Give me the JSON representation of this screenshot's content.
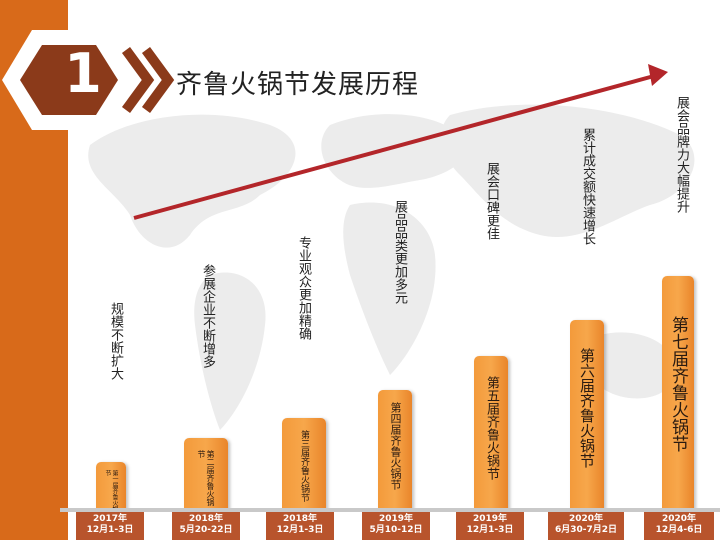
{
  "badge": {
    "number": "1"
  },
  "title": "齐鲁火锅节发展历程",
  "milestones": [
    {
      "text": "规模不断扩大",
      "bar_label": "第一届齐鲁火锅节",
      "date_line1": "2017年",
      "date_line2": "12月1-3日"
    },
    {
      "text": "参展企业不断增多",
      "bar_label": "第二届齐鲁火锅节",
      "date_line1": "2018年",
      "date_line2": "5月20-22日"
    },
    {
      "text": "专业观众更加精确",
      "bar_label": "第三届齐鲁火锅节",
      "date_line1": "2018年",
      "date_line2": "12月1-3日"
    },
    {
      "text": "展品品类更加多元",
      "bar_label": "第四届齐鲁火锅节",
      "date_line1": "2019年",
      "date_line2": "5月10-12日"
    },
    {
      "text": "展会口碑更佳",
      "bar_label": "第五届齐鲁火锅节",
      "date_line1": "2019年",
      "date_line2": "12月1-3日"
    },
    {
      "text": "累计成交额快速增长",
      "bar_label": "第六届齐鲁火锅节",
      "date_line1": "2020年",
      "date_line2": "6月30-7月2日"
    },
    {
      "text": "展会品牌力大幅提升",
      "bar_label": "第七届齐鲁火锅节",
      "date_line1": "2020年",
      "date_line2": "12月4-6日"
    }
  ],
  "colors": {
    "accent": "#d86a1a",
    "bar": "#f39a3b",
    "date_box": "#b8542c",
    "arrow": "#b3262a"
  },
  "icons": {
    "badge": "chevron-badge-icon",
    "arrow": "trend-arrow-icon"
  }
}
